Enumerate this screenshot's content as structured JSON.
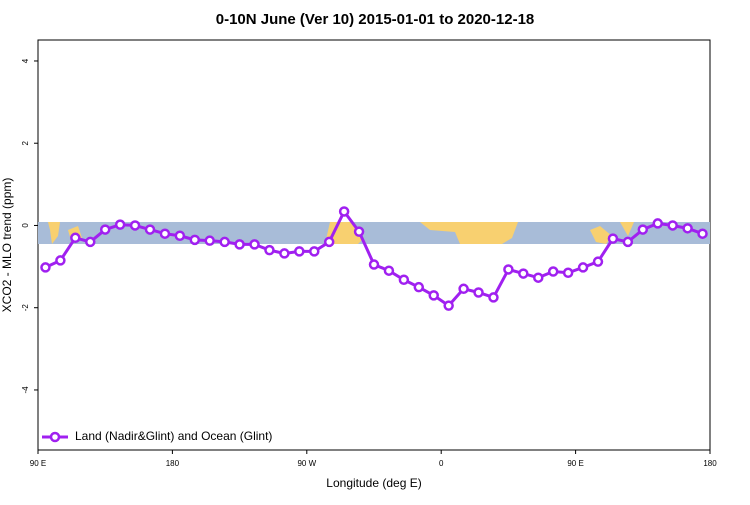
{
  "chart_data": {
    "type": "line",
    "title": "0-10N June (Ver 10)   2015-01-01 to 2020-12-18",
    "x_label": "Longitude (deg E)",
    "y_label": "XCO2 - MLO trend (ppm)",
    "xlim": [
      90,
      540
    ],
    "xticks": [
      {
        "value": 90,
        "label": "90 E"
      },
      {
        "value": 180,
        "label": "180"
      },
      {
        "value": 270,
        "label": "90 W"
      },
      {
        "value": 360,
        "label": "0"
      },
      {
        "value": 450,
        "label": "90 E"
      },
      {
        "value": 540,
        "label": "180"
      }
    ],
    "ylim": [
      -5.46,
      4.51
    ],
    "yticks": [
      -4,
      -2,
      0,
      2,
      4
    ],
    "legend": "bottom-left",
    "x": [
      95,
      105,
      115,
      125,
      135,
      145,
      155,
      165,
      175,
      185,
      195,
      205,
      215,
      225,
      235,
      245,
      255,
      265,
      275,
      285,
      295,
      305,
      315,
      325,
      335,
      345,
      355,
      365,
      375,
      385,
      395,
      405,
      415,
      425,
      435,
      445,
      455,
      465,
      475,
      485,
      495,
      505,
      515,
      525,
      535
    ],
    "series": [
      {
        "name": "Land (Nadir&Glint) and Ocean (Glint)",
        "color": "#a020f0",
        "values": [
          -1.02,
          -0.85,
          -0.3,
          -0.4,
          -0.1,
          0.02,
          0,
          -0.1,
          -0.2,
          -0.25,
          -0.35,
          -0.37,
          -0.4,
          -0.46,
          -0.46,
          -0.6,
          -0.68,
          -0.63,
          -0.63,
          -0.4,
          0.34,
          -0.15,
          -0.95,
          -1.1,
          -1.32,
          -1.5,
          -1.7,
          -1.95,
          -1.54,
          -1.63,
          -1.75,
          -1.07,
          -1.17,
          -1.27,
          -1.12,
          -1.15,
          -1.02,
          -0.88,
          -0.32,
          -0.4,
          -0.1,
          0.05,
          0,
          -0.07,
          -0.2
        ]
      }
    ]
  }
}
